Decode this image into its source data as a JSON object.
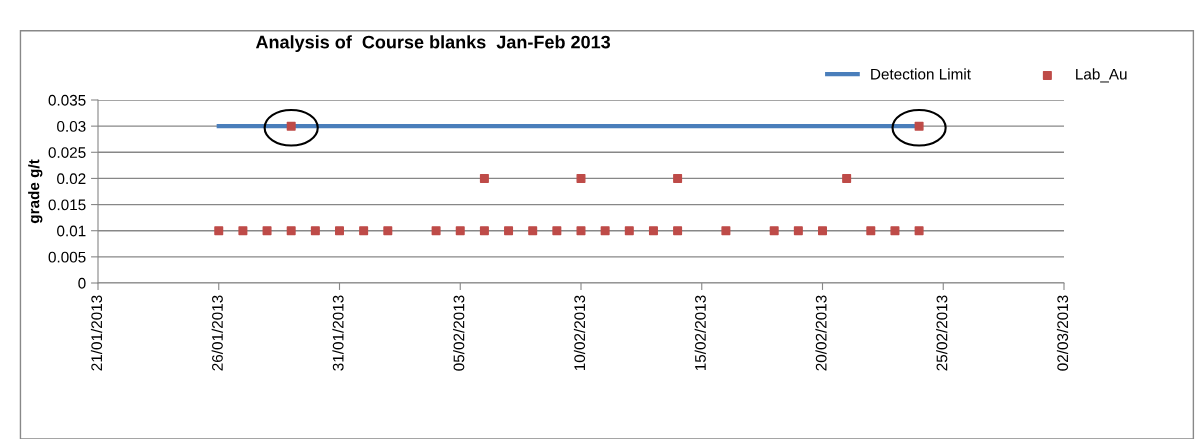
{
  "chart_data": {
    "type": "scatter",
    "title": "Analysis of  Course blanks  Jan-Feb 2013",
    "ylabel": "grade g/t",
    "series": [
      {
        "name": "Detection Limit",
        "type": "line",
        "color": "#4a7ebb",
        "marker": "none",
        "x": [
          "2013-01-26",
          "2013-02-24"
        ],
        "values": [
          0.03,
          0.03
        ]
      },
      {
        "name": "Lab_Au",
        "color": "#be4b48",
        "marker": "square",
        "x": [
          "2013-01-26",
          "2013-01-27",
          "2013-01-28",
          "2013-01-29",
          "2013-01-29",
          "2013-01-30",
          "2013-01-31",
          "2013-02-01",
          "2013-02-02",
          "2013-02-04",
          "2013-02-05",
          "2013-02-06",
          "2013-02-06",
          "2013-02-07",
          "2013-02-08",
          "2013-02-09",
          "2013-02-10",
          "2013-02-10",
          "2013-02-11",
          "2013-02-12",
          "2013-02-13",
          "2013-02-14",
          "2013-02-14",
          "2013-02-16",
          "2013-02-18",
          "2013-02-19",
          "2013-02-20",
          "2013-02-21",
          "2013-02-22",
          "2013-02-23",
          "2013-02-24",
          "2013-02-24"
        ],
        "values": [
          0.01,
          0.01,
          0.01,
          0.01,
          0.03,
          0.01,
          0.01,
          0.01,
          0.01,
          0.01,
          0.01,
          0.01,
          0.02,
          0.01,
          0.01,
          0.01,
          0.01,
          0.02,
          0.01,
          0.01,
          0.01,
          0.01,
          0.02,
          0.01,
          0.01,
          0.01,
          0.01,
          0.02,
          0.01,
          0.01,
          0.01,
          0.03
        ]
      }
    ],
    "xlim": [
      "2013-01-21",
      "2013-03-02"
    ],
    "xticks": [
      {
        "value": "2013-01-21",
        "label": "21/01/2013"
      },
      {
        "value": "2013-01-26",
        "label": "26/01/2013"
      },
      {
        "value": "2013-01-31",
        "label": "31/01/2013"
      },
      {
        "value": "2013-02-05",
        "label": "05/02/2013"
      },
      {
        "value": "2013-02-10",
        "label": "10/02/2013"
      },
      {
        "value": "2013-02-15",
        "label": "15/02/2013"
      },
      {
        "value": "2013-02-20",
        "label": "20/02/2013"
      },
      {
        "value": "2013-02-25",
        "label": "25/02/2013"
      },
      {
        "value": "2013-03-02",
        "label": "02/03/2013"
      }
    ],
    "ylim": [
      0,
      0.035
    ],
    "yticks": [
      0,
      0.005,
      0.01,
      0.015,
      0.02,
      0.025,
      0.03,
      0.035
    ],
    "grid": "y",
    "legend": "top right"
  }
}
